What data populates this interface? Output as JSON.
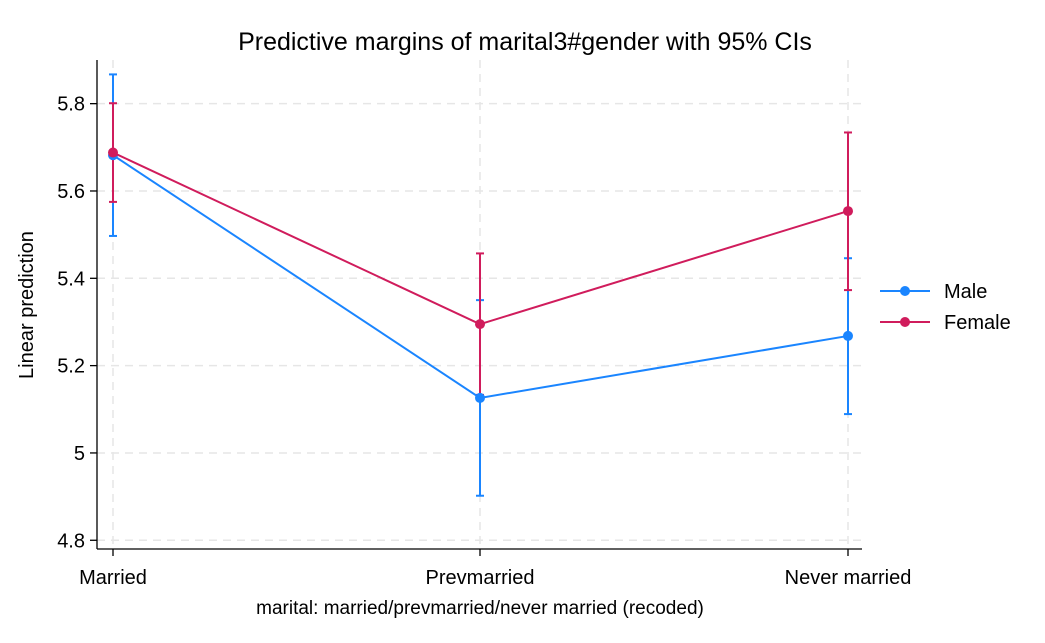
{
  "chart_data": {
    "type": "line",
    "title": "Predictive margins of marital3#gender with 95% CIs",
    "xlabel": "marital: married/prevmarried/never married (recoded)",
    "ylabel": "Linear prediction",
    "categories": [
      "Married",
      "Prevmarried",
      "Never married"
    ],
    "ylim": [
      4.78,
      5.9
    ],
    "yticks": [
      4.8,
      5,
      5.2,
      5.4,
      5.6,
      5.8
    ],
    "ytick_labels": [
      "4.8",
      "5",
      "5.2",
      "5.4",
      "5.6",
      "5.8"
    ],
    "grid": true,
    "legend_position": "right",
    "series": [
      {
        "name": "Male",
        "color": "#1a85ff",
        "values": [
          5.682,
          5.126,
          5.268
        ],
        "ci_low": [
          5.497,
          4.902,
          5.089
        ],
        "ci_high": [
          5.867,
          5.35,
          5.446
        ]
      },
      {
        "name": "Female",
        "color": "#d01c5c",
        "values": [
          5.688,
          5.295,
          5.554
        ],
        "ci_low": [
          5.575,
          5.133,
          5.373
        ],
        "ci_high": [
          5.801,
          5.457,
          5.734
        ]
      }
    ]
  }
}
